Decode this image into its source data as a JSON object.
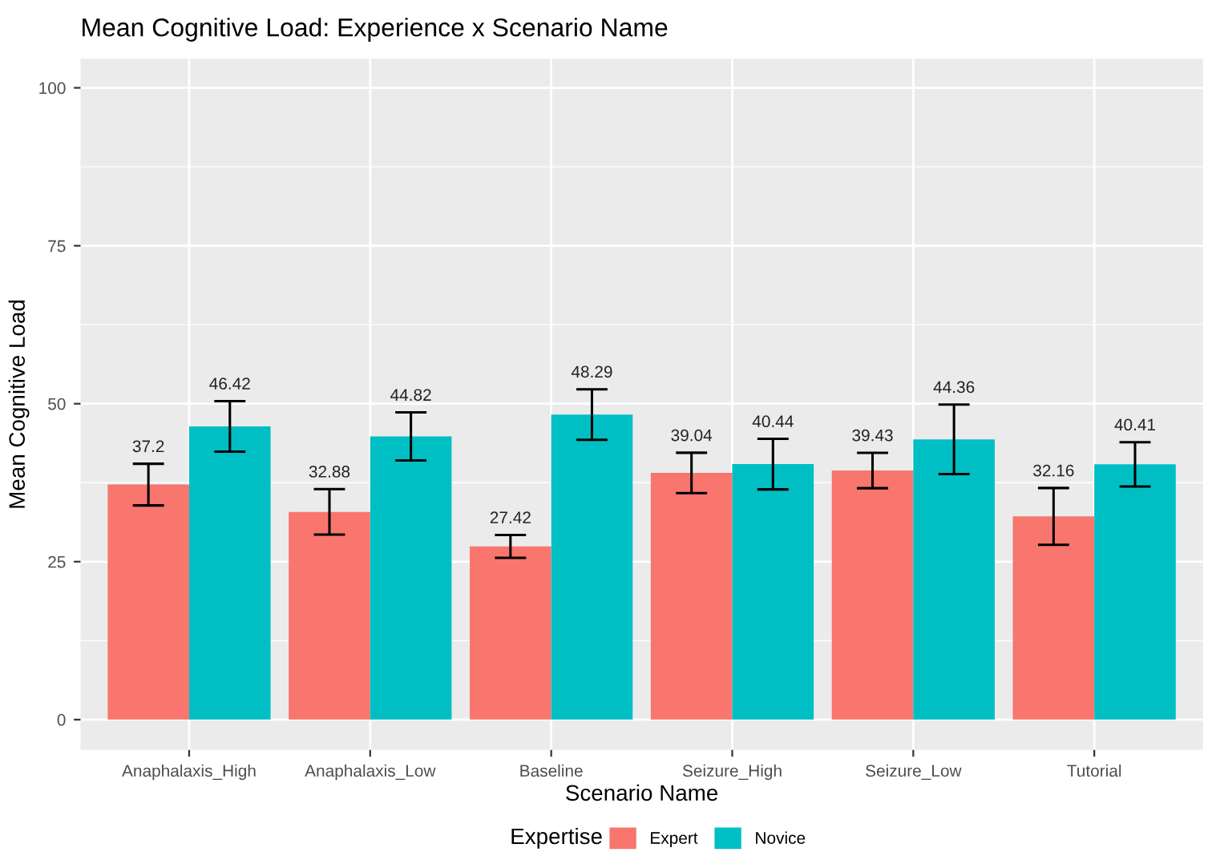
{
  "chart_data": {
    "type": "bar",
    "title": "Mean Cognitive Load: Experience x Scenario Name",
    "xlabel": "Scenario Name",
    "ylabel": "Mean Cognitive Load",
    "legend_title": "Expertise",
    "categories": [
      "Anaphalaxis_High",
      "Anaphalaxis_Low",
      "Baseline",
      "Seizure_High",
      "Seizure_Low",
      "Tutorial"
    ],
    "series": [
      {
        "name": "Expert",
        "color": "#f8766d",
        "values": [
          37.2,
          32.88,
          27.42,
          39.04,
          39.43,
          32.16
        ],
        "errors": [
          3.3,
          3.6,
          1.8,
          3.2,
          2.8,
          4.5
        ]
      },
      {
        "name": "Novice",
        "color": "#00bfc4",
        "values": [
          46.42,
          44.82,
          48.29,
          40.44,
          44.36,
          40.41
        ],
        "errors": [
          4.0,
          3.8,
          4.0,
          4.0,
          5.5,
          3.5
        ]
      }
    ],
    "ylim": [
      -4.8,
      104.6
    ],
    "yticks": [
      0,
      25,
      50,
      75,
      100
    ],
    "grid": true,
    "legend": "bottom",
    "data_labels": true
  }
}
